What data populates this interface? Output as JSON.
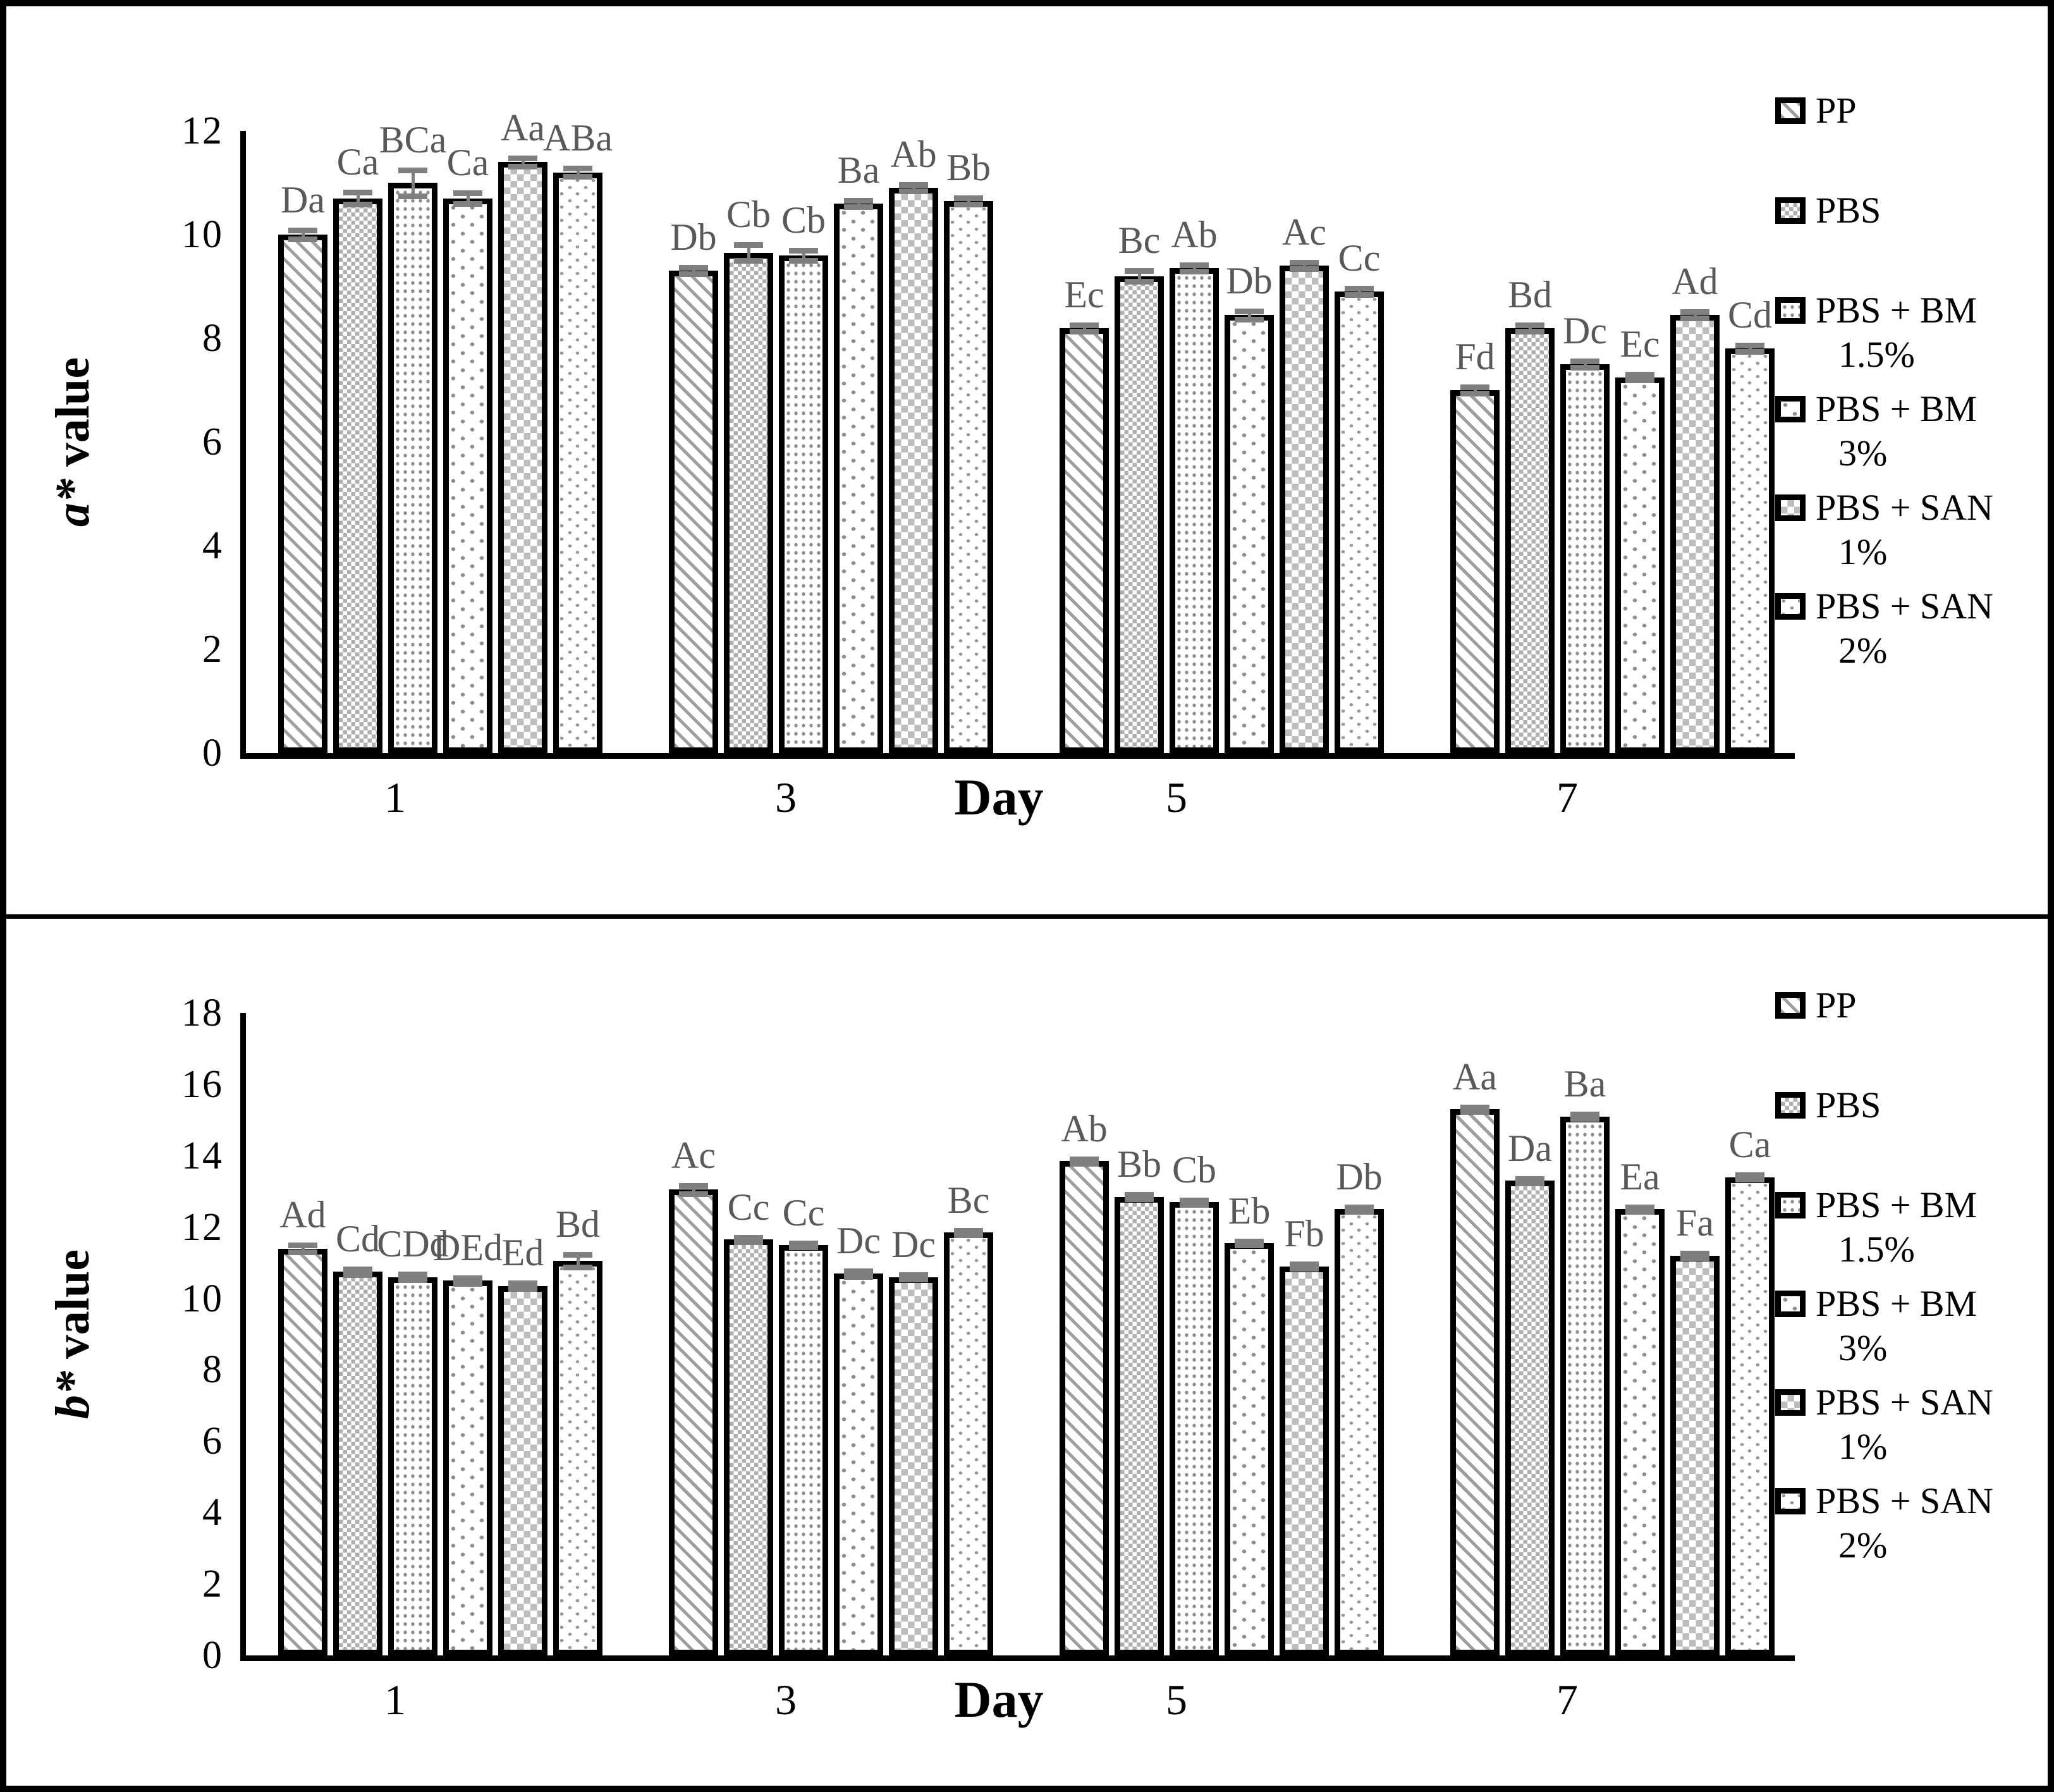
{
  "chart_data": [
    {
      "id": "a-star",
      "type": "bar",
      "ylabel_italic": "a*",
      "ylabel_rest": " value",
      "xlabel": "Day",
      "ymax": 12,
      "ylim": [
        0,
        12
      ],
      "grid": false,
      "legend_position": "right",
      "yticks": [
        0,
        2,
        4,
        6,
        8,
        10,
        12
      ],
      "categories": [
        "1",
        "3",
        "5",
        "7"
      ],
      "series": [
        {
          "name": "PP",
          "pattern": "pp",
          "values": [
            10.0,
            9.3,
            8.2,
            7.0
          ],
          "errors": [
            0.08,
            0.06,
            0.06,
            0.06
          ],
          "labels": [
            "Da",
            "Db",
            "Ec",
            "Fd"
          ]
        },
        {
          "name": "PBS",
          "pattern": "pbs",
          "values": [
            10.7,
            9.65,
            9.2,
            8.2
          ],
          "errors": [
            0.12,
            0.15,
            0.1,
            0.06
          ],
          "labels": [
            "Ca",
            "Cb",
            "Bc",
            "Bd"
          ]
        },
        {
          "name": "PBS + BM 1.5%",
          "pattern": "bm15",
          "values": [
            11.0,
            9.6,
            9.35,
            7.5
          ],
          "errors": [
            0.25,
            0.1,
            0.06,
            0.06
          ],
          "labels": [
            "BCa",
            "Cb",
            "Ab",
            "Dc"
          ]
        },
        {
          "name": "PBS + BM 3%",
          "pattern": "bm3",
          "values": [
            10.7,
            10.6,
            8.45,
            7.25
          ],
          "errors": [
            0.1,
            0.06,
            0.08,
            0.06
          ],
          "labels": [
            "Ca",
            "Ba",
            "Db",
            "Ec"
          ]
        },
        {
          "name": "PBS + SAN 1%",
          "pattern": "san1",
          "values": [
            11.4,
            10.9,
            9.4,
            8.45
          ],
          "errors": [
            0.08,
            0.06,
            0.06,
            0.06
          ],
          "labels": [
            "Aa",
            "Ab",
            "Ac",
            "Ad"
          ]
        },
        {
          "name": "PBS + SAN 2%",
          "pattern": "san2",
          "values": [
            11.2,
            10.65,
            8.9,
            7.8
          ],
          "errors": [
            0.08,
            0.06,
            0.06,
            0.06
          ],
          "labels": [
            "ABa",
            "Bb",
            "Cc",
            "Cd"
          ]
        }
      ],
      "legend": [
        {
          "line1": "PP"
        },
        {
          "line1": "PBS"
        },
        {
          "line1": "PBS + BM",
          "line2": "1.5%"
        },
        {
          "line1": "PBS + BM",
          "line2": "3%"
        },
        {
          "line1": "PBS + SAN",
          "line2": "1%"
        },
        {
          "line1": "PBS + SAN",
          "line2": "2%"
        }
      ]
    },
    {
      "id": "b-star",
      "type": "bar",
      "ylabel_italic": "b*",
      "ylabel_rest": " value",
      "xlabel": "Day",
      "ymax": 18,
      "ylim": [
        0,
        18
      ],
      "grid": false,
      "legend_position": "right",
      "yticks": [
        0,
        2,
        4,
        6,
        8,
        10,
        12,
        14,
        16,
        18
      ],
      "categories": [
        "1",
        "3",
        "5",
        "7"
      ],
      "series": [
        {
          "name": "PP",
          "pattern": "pp",
          "values": [
            11.4,
            13.05,
            13.85,
            15.3
          ],
          "errors": [
            0.1,
            0.12,
            0.06,
            0.06
          ],
          "labels": [
            "Ad",
            "Ac",
            "Ab",
            "Aa"
          ]
        },
        {
          "name": "PBS",
          "pattern": "pbs",
          "values": [
            10.75,
            11.65,
            12.85,
            13.3
          ],
          "errors": [
            0.08,
            0.06,
            0.06,
            0.06
          ],
          "labels": [
            "Cd",
            "Cc",
            "Bb",
            "Da"
          ]
        },
        {
          "name": "PBS + BM 1.5%",
          "pattern": "bm15",
          "values": [
            10.6,
            11.5,
            12.7,
            15.1
          ],
          "errors": [
            0.08,
            0.06,
            0.06,
            0.06
          ],
          "labels": [
            "CDd",
            "Cc",
            "Cb",
            "Ba"
          ]
        },
        {
          "name": "PBS + BM 3%",
          "pattern": "bm3",
          "values": [
            10.5,
            10.7,
            11.55,
            12.5
          ],
          "errors": [
            0.08,
            0.08,
            0.06,
            0.06
          ],
          "labels": [
            "DEd",
            "Dc",
            "Eb",
            "Ea"
          ]
        },
        {
          "name": "PBS + SAN 1%",
          "pattern": "san1",
          "values": [
            10.35,
            10.6,
            10.9,
            11.2
          ],
          "errors": [
            0.08,
            0.06,
            0.06,
            0.06
          ],
          "labels": [
            "Ed",
            "Dc",
            "Fb",
            "Fa"
          ]
        },
        {
          "name": "PBS + SAN 2%",
          "pattern": "san2",
          "values": [
            11.05,
            11.85,
            12.5,
            13.4
          ],
          "errors": [
            0.18,
            0.06,
            0.06,
            0.06
          ],
          "labels": [
            "Bd",
            "Bc",
            "Db",
            "Ca"
          ]
        }
      ],
      "legend": [
        {
          "line1": "PP"
        },
        {
          "line1": "PBS"
        },
        {
          "line1": "PBS + BM",
          "line2": "1.5%"
        },
        {
          "line1": "PBS + BM",
          "line2": "3%"
        },
        {
          "line1": "PBS + SAN",
          "line2": "1%"
        },
        {
          "line1": "PBS + SAN",
          "line2": "2%"
        }
      ]
    }
  ],
  "colors": {
    "annotation": "#595959",
    "error_bar": "#7f7f7f",
    "axis": "#000000",
    "background": "#ffffff"
  }
}
